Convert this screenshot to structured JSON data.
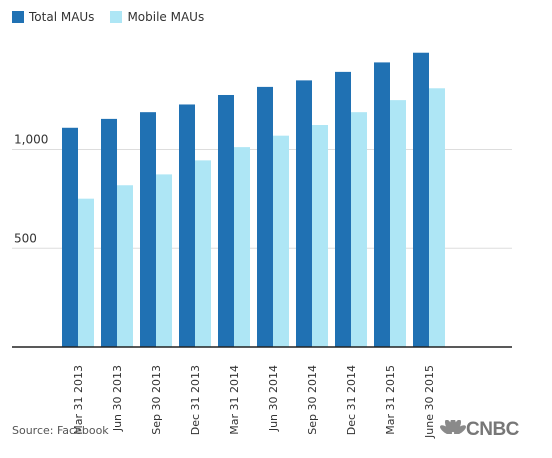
{
  "legend": {
    "total_label": "Total MAUs",
    "mobile_label": "Mobile MAUs"
  },
  "source": "Source: Facebook",
  "logo": {
    "text": "CNBC"
  },
  "colors": {
    "total": "#2071b3",
    "mobile": "#aee6f5",
    "grid": "#dddddd",
    "axis": "#222222"
  },
  "chart_data": {
    "type": "bar",
    "categories": [
      "Mar 31 2013",
      "Jun 30 2013",
      "Sep 30 2013",
      "Dec 31 2013",
      "Mar 31 2014",
      "Jun 30 2014",
      "Sep 30 2014",
      "Dec 31 2014",
      "Mar 31 2015",
      "June 30 2015"
    ],
    "series": [
      {
        "name": "Total MAUs",
        "values": [
          1110,
          1155,
          1189,
          1228,
          1276,
          1317,
          1350,
          1393,
          1441,
          1490
        ]
      },
      {
        "name": "Mobile MAUs",
        "values": [
          751,
          819,
          874,
          945,
          1012,
          1070,
          1124,
          1189,
          1250,
          1310
        ]
      }
    ],
    "yticks": [
      500,
      1000
    ],
    "ytick_labels": [
      "500",
      "1,000"
    ],
    "ylim": [
      0,
      1500
    ],
    "xlabel": "",
    "ylabel": "",
    "grid": true,
    "legend_position": "top-left"
  }
}
